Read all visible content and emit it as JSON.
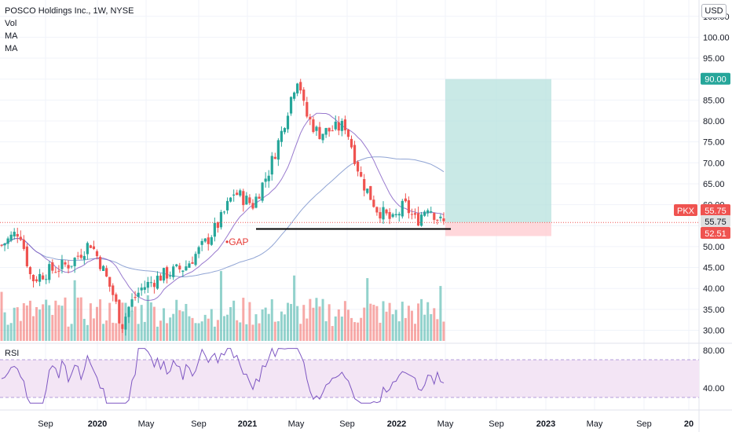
{
  "legend": {
    "title": "POSCO Holdings Inc., 1W, NYSE",
    "vol": "Vol",
    "ma1": "MA",
    "ma2": "MA"
  },
  "currency": "USD",
  "rsi_label": "RSI",
  "annotation": "GAP",
  "price_labels": {
    "target": "90.00",
    "ticker": "PKX",
    "last": "55.75",
    "last2": "55.75",
    "stop": "52.51"
  },
  "colors": {
    "up": "#26a69a",
    "down": "#ef5350",
    "target_zone": "#b2dfdb",
    "stop_zone": "#ffcdd2",
    "ma_fast": "#7e57c2",
    "ma_slow": "#90a4d4",
    "rsi_line": "#7e57c2",
    "rsi_band": "#f3e5f5"
  },
  "chart_data": {
    "type": "candlestick",
    "y_axis": {
      "range": [
        27,
        107
      ],
      "ticks": [
        "105.00",
        "100.00",
        "95.00",
        "90.00",
        "85.00",
        "80.00",
        "75.00",
        "70.00",
        "65.00",
        "60.00",
        "55.00",
        "50.00",
        "45.00",
        "40.00",
        "35.00",
        "30.00"
      ]
    },
    "x_axis": {
      "ticks": [
        "Sep",
        "2020",
        "May",
        "Sep",
        "2021",
        "May",
        "Sep",
        "2022",
        "May",
        "Sep",
        "2023",
        "May",
        "Sep",
        "20"
      ]
    },
    "rsi_axis": {
      "ticks": [
        "80.00",
        "40.00"
      ],
      "band": [
        30,
        70
      ]
    },
    "support_level": 54.2,
    "target_price": 90.0,
    "entry_price": 55.75,
    "stop_price": 52.51,
    "key_closes": [
      {
        "date": "2019-08",
        "close": 52
      },
      {
        "date": "2019-10",
        "close": 42
      },
      {
        "date": "2020-01",
        "close": 51
      },
      {
        "date": "2020-03",
        "close": 32
      },
      {
        "date": "2020-09",
        "close": 40
      },
      {
        "date": "2020-12",
        "close": 62
      },
      {
        "date": "2021-05",
        "close": 91
      },
      {
        "date": "2021-09",
        "close": 78
      },
      {
        "date": "2021-12",
        "close": 56
      },
      {
        "date": "2022-04",
        "close": 55.75
      }
    ]
  }
}
